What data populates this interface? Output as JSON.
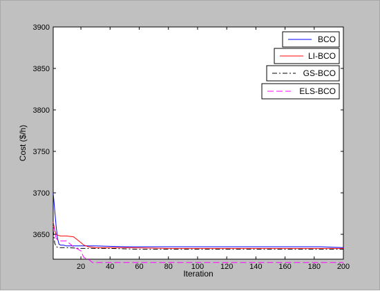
{
  "chart_data": {
    "type": "line",
    "title": "",
    "xlabel": "Iteration",
    "ylabel": "Cost  ($/h)",
    "xlim": [
      1,
      200
    ],
    "ylim": [
      3620,
      3900
    ],
    "xticks": [
      20,
      40,
      60,
      80,
      100,
      120,
      140,
      160,
      180,
      200
    ],
    "yticks": [
      3650,
      3700,
      3750,
      3800,
      3850,
      3900
    ],
    "grid": false,
    "legend_placement": "top-right",
    "series": [
      {
        "name": "BCO",
        "color": "#0000ff",
        "style": "solid",
        "x": [
          1,
          2,
          3,
          4,
          5,
          6,
          8,
          10,
          15,
          20,
          30,
          50,
          80,
          100,
          150,
          185,
          200
        ],
        "y": [
          3700,
          3680,
          3660,
          3645,
          3638,
          3637,
          3637,
          3636,
          3636,
          3636,
          3636,
          3635,
          3635,
          3635,
          3635,
          3635,
          3634
        ]
      },
      {
        "name": "LI-BCO",
        "color": "#ff0000",
        "style": "solid",
        "x": [
          1,
          2,
          3,
          4,
          6,
          10,
          15,
          20,
          22,
          25,
          30,
          50,
          80,
          100,
          150,
          200
        ],
        "y": [
          3665,
          3655,
          3650,
          3649,
          3648,
          3648,
          3647,
          3640,
          3637,
          3635,
          3634,
          3634,
          3633,
          3633,
          3633,
          3633
        ]
      },
      {
        "name": "GS-BCO",
        "color": "#000000",
        "style": "dashdot",
        "x": [
          1,
          2,
          3,
          5,
          10,
          20,
          40,
          60,
          80,
          100,
          150,
          200
        ],
        "y": [
          3655,
          3640,
          3635,
          3634,
          3634,
          3633,
          3633,
          3632,
          3632,
          3632,
          3632,
          3632
        ]
      },
      {
        "name": "ELS-BCO",
        "color": "#ff00ff",
        "style": "dashed",
        "x": [
          1,
          2,
          3,
          5,
          10,
          15,
          20,
          22,
          25,
          28,
          30,
          50,
          100,
          150,
          200
        ],
        "y": [
          3660,
          3655,
          3645,
          3642,
          3642,
          3635,
          3630,
          3622,
          3620,
          3616,
          3616,
          3616,
          3616,
          3616,
          3616
        ]
      }
    ]
  }
}
